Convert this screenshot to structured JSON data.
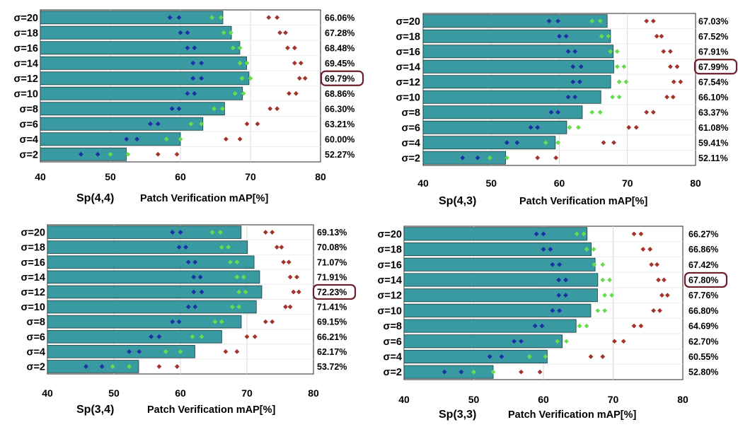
{
  "figure_title": "",
  "colors": {
    "bar": "#3a9aa2",
    "bar_edge": "#1b3a3c",
    "blue_marker": "#1c2fa6",
    "green_marker": "#66dd4c",
    "red_marker": "#a4332b",
    "highlight_box": "#6b1f2a"
  },
  "chart_data": [
    {
      "type": "bar",
      "orientation": "horizontal",
      "subtitle": "Sp(4,4)",
      "xlabel": "Patch Verification mAP[%]",
      "xlim": [
        40,
        80
      ],
      "xticks": [
        "40",
        "50",
        "60",
        "70",
        "80"
      ],
      "grid": true,
      "categories": [
        "σ=2",
        "σ=4",
        "σ=6",
        "σ=8",
        "σ=10",
        "σ=12",
        "σ=14",
        "σ=16",
        "σ=18",
        "σ=20"
      ],
      "values": [
        52.27,
        60.0,
        63.21,
        66.3,
        68.86,
        69.79,
        69.45,
        68.48,
        67.28,
        66.06
      ],
      "value_labels": [
        "52.27%",
        "60.00%",
        "63.21%",
        "66.30%",
        "68.86%",
        "69.79%",
        "69.45%",
        "68.48%",
        "67.28%",
        "66.06%"
      ],
      "highlight_index": 5,
      "markers": {
        "blue": [
          [
            45.8,
            48.2
          ],
          [
            52.3,
            53.8
          ],
          [
            55.7,
            56.8
          ],
          [
            58.8,
            59.8
          ],
          [
            61.0,
            62.0
          ],
          [
            61.8,
            63.0
          ],
          [
            61.8,
            63.0
          ],
          [
            61.0,
            62.0
          ],
          [
            60.0,
            61.0
          ],
          [
            58.5,
            59.8
          ]
        ],
        "green": [
          [
            50.0,
            52.5
          ],
          [
            58.0,
            60.0
          ],
          [
            61.5,
            63.0
          ],
          [
            64.8,
            66.0
          ],
          [
            67.8,
            69.0
          ],
          [
            68.8,
            70.0
          ],
          [
            68.5,
            69.5
          ],
          [
            67.5,
            68.5
          ],
          [
            66.2,
            67.2
          ],
          [
            64.5,
            65.8
          ]
        ],
        "red": [
          [
            56.8,
            59.5
          ],
          [
            66.5,
            68.5
          ],
          [
            69.5,
            71.0
          ],
          [
            72.8,
            73.8
          ],
          [
            75.5,
            76.5
          ],
          [
            77.0,
            77.8
          ],
          [
            76.3,
            77.2
          ],
          [
            75.3,
            76.3
          ],
          [
            74.2,
            75.0
          ],
          [
            72.6,
            73.8
          ]
        ]
      }
    },
    {
      "type": "bar",
      "orientation": "horizontal",
      "subtitle": "Sp(4,3)",
      "xlabel": "Patch Verification mAP[%]",
      "xlim": [
        40,
        80
      ],
      "xticks": [
        "40",
        "50",
        "60",
        "70",
        "80"
      ],
      "grid": true,
      "categories": [
        "σ=2",
        "σ=4",
        "σ=6",
        "σ=8",
        "σ=10",
        "σ=12",
        "σ=14",
        "σ=16",
        "σ=18",
        "σ=20"
      ],
      "values": [
        52.11,
        59.41,
        61.08,
        63.37,
        66.1,
        67.54,
        67.99,
        67.91,
        67.52,
        67.03
      ],
      "value_labels": [
        "52.11%",
        "59.41%",
        "61.08%",
        "63.37%",
        "66.10%",
        "67.54%",
        "67.99%",
        "67.91%",
        "67.52%",
        "67.03%"
      ],
      "highlight_index": 6,
      "markers": {
        "blue": [
          [
            45.8,
            48.0
          ],
          [
            52.3,
            53.8
          ],
          [
            55.8,
            56.8
          ],
          [
            58.8,
            59.8
          ],
          [
            61.3,
            62.3
          ],
          [
            62.0,
            63.0
          ],
          [
            62.0,
            63.2
          ],
          [
            61.3,
            62.3
          ],
          [
            60.0,
            61.0
          ],
          [
            58.5,
            59.8
          ]
        ],
        "green": [
          [
            49.8,
            52.3
          ],
          [
            58.0,
            59.8
          ],
          [
            61.5,
            62.8
          ],
          [
            64.8,
            66.0
          ],
          [
            67.8,
            68.8
          ],
          [
            68.8,
            69.8
          ],
          [
            68.5,
            69.5
          ],
          [
            67.5,
            68.5
          ],
          [
            66.2,
            67.2
          ],
          [
            64.8,
            66.0
          ]
        ],
        "red": [
          [
            56.8,
            59.5
          ],
          [
            66.5,
            68.0
          ],
          [
            70.2,
            71.3
          ],
          [
            72.8,
            73.8
          ],
          [
            75.8,
            76.7
          ],
          [
            76.8,
            77.8
          ],
          [
            76.3,
            77.3
          ],
          [
            75.3,
            76.3
          ],
          [
            74.3,
            75.0
          ],
          [
            72.8,
            73.8
          ]
        ]
      }
    },
    {
      "type": "bar",
      "orientation": "horizontal",
      "subtitle": "Sp(3,4)",
      "xlabel": "Patch Verification mAP[%]",
      "xlim": [
        40,
        80
      ],
      "xticks": [
        "40",
        "50",
        "60",
        "70",
        "80"
      ],
      "grid": true,
      "categories": [
        "σ=2",
        "σ=4",
        "σ=6",
        "σ=8",
        "σ=10",
        "σ=12",
        "σ=14",
        "σ=16",
        "σ=18",
        "σ=20"
      ],
      "values": [
        53.72,
        62.17,
        66.21,
        69.15,
        71.41,
        72.23,
        71.91,
        71.07,
        70.08,
        69.13
      ],
      "value_labels": [
        "53.72%",
        "62.17%",
        "66.21%",
        "69.15%",
        "71.41%",
        "72.23%",
        "71.91%",
        "71.07%",
        "70.08%",
        "69.13%"
      ],
      "highlight_index": 5,
      "markers": {
        "blue": [
          [
            45.8,
            48.2
          ],
          [
            52.3,
            53.8
          ],
          [
            55.6,
            56.8
          ],
          [
            58.8,
            59.8
          ],
          [
            61.2,
            62.2
          ],
          [
            62.0,
            63.2
          ],
          [
            62.0,
            63.0
          ],
          [
            61.2,
            62.2
          ],
          [
            59.8,
            60.8
          ],
          [
            58.8,
            60.0
          ]
        ],
        "green": [
          [
            49.8,
            52.3
          ],
          [
            57.8,
            60.0
          ],
          [
            61.8,
            63.2
          ],
          [
            65.2,
            66.2
          ],
          [
            67.8,
            68.8
          ],
          [
            68.8,
            69.8
          ],
          [
            68.5,
            69.5
          ],
          [
            67.5,
            68.5
          ],
          [
            66.2,
            67.2
          ],
          [
            64.8,
            66.0
          ]
        ],
        "red": [
          [
            56.8,
            59.5
          ],
          [
            66.8,
            68.5
          ],
          [
            70.0,
            71.2
          ],
          [
            72.8,
            73.8
          ],
          [
            75.8,
            76.5
          ],
          [
            77.0,
            77.8
          ],
          [
            76.5,
            77.5
          ],
          [
            75.5,
            76.3
          ],
          [
            74.5,
            75.2
          ],
          [
            72.8,
            73.8
          ]
        ]
      }
    },
    {
      "type": "bar",
      "orientation": "horizontal",
      "subtitle": "Sp(3,3)",
      "xlabel": "Patch Verification mAP[%]",
      "xlim": [
        40,
        80
      ],
      "xticks": [
        "40",
        "50",
        "60",
        "70",
        "80"
      ],
      "grid": true,
      "categories": [
        "σ=2",
        "σ=4",
        "σ=6",
        "σ=8",
        "σ=10",
        "σ=12",
        "σ=14",
        "σ=16",
        "σ=18",
        "σ=20"
      ],
      "values": [
        52.8,
        60.55,
        62.7,
        64.69,
        66.8,
        67.76,
        67.8,
        67.42,
        66.86,
        66.27
      ],
      "value_labels": [
        "52.80%",
        "60.55%",
        "62.70%",
        "64.69%",
        "66.80%",
        "67.76%",
        "67.80%",
        "67.42%",
        "66.86%",
        "66.27%"
      ],
      "highlight_index": 6,
      "markers": {
        "blue": [
          [
            45.8,
            48.2
          ],
          [
            52.3,
            54.0
          ],
          [
            55.8,
            56.8
          ],
          [
            58.8,
            59.8
          ],
          [
            61.3,
            62.3
          ],
          [
            62.2,
            63.2
          ],
          [
            62.2,
            63.2
          ],
          [
            61.3,
            62.3
          ],
          [
            60.0,
            61.0
          ],
          [
            59.0,
            60.0
          ]
        ],
        "green": [
          [
            50.0,
            52.8
          ],
          [
            58.0,
            60.3
          ],
          [
            62.0,
            63.3
          ],
          [
            65.2,
            66.2
          ],
          [
            67.8,
            68.8
          ],
          [
            68.8,
            69.8
          ],
          [
            68.5,
            69.5
          ],
          [
            67.3,
            68.5
          ],
          [
            66.2,
            67.2
          ],
          [
            64.8,
            65.8
          ]
        ],
        "red": [
          [
            56.8,
            59.5
          ],
          [
            66.8,
            68.5
          ],
          [
            70.2,
            71.5
          ],
          [
            73.0,
            74.0
          ],
          [
            75.8,
            76.7
          ],
          [
            77.0,
            77.8
          ],
          [
            76.5,
            77.3
          ],
          [
            75.5,
            76.3
          ],
          [
            74.3,
            75.3
          ],
          [
            73.0,
            74.0
          ]
        ]
      }
    }
  ]
}
